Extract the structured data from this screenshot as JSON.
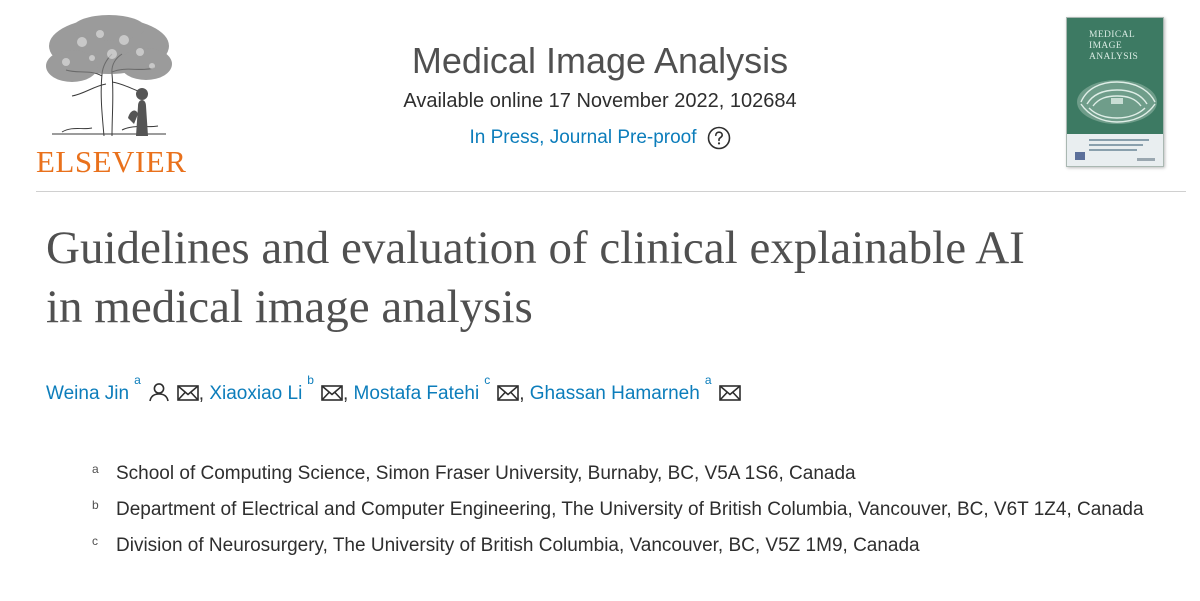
{
  "publisher": {
    "name": "ELSEVIER"
  },
  "journal": {
    "title": "Medical Image Analysis",
    "issue": "Available online 17 November 2022, 102684",
    "status": "In Press, Journal Pre-proof",
    "help_icon": "question-circle-icon",
    "cover_title": "MEDICAL IMAGE ANALYSIS"
  },
  "article": {
    "title_line1": "Guidelines and evaluation of clinical explainable AI",
    "title_line2": "in medical image analysis"
  },
  "authors": [
    {
      "name": "Weina Jin",
      "aff": "a",
      "icons": [
        "person-icon",
        "mail-icon"
      ]
    },
    {
      "name": "Xiaoxiao Li",
      "aff": "b",
      "icons": [
        "mail-icon"
      ]
    },
    {
      "name": "Mostafa Fatehi",
      "aff": "c",
      "icons": [
        "mail-icon"
      ]
    },
    {
      "name": "Ghassan Hamarneh",
      "aff": "a",
      "icons": [
        "mail-icon"
      ]
    }
  ],
  "author_separator": ",",
  "affiliations": [
    {
      "label": "a",
      "text": "School of Computing Science, Simon Fraser University, Burnaby, BC, V5A 1S6, Canada"
    },
    {
      "label": "b",
      "text": "Department of Electrical and Computer Engineering, The University of British Columbia, Vancouver, BC, V6T 1Z4, Canada"
    },
    {
      "label": "c",
      "text": "Division of Neurosurgery, The University of British Columbia, Vancouver, BC, V5Z 1M9, Canada"
    }
  ],
  "colors": {
    "link": "#0c7dbb",
    "publisher": "#e9711c",
    "heading": "#505050",
    "cover": "#3d7a63"
  }
}
